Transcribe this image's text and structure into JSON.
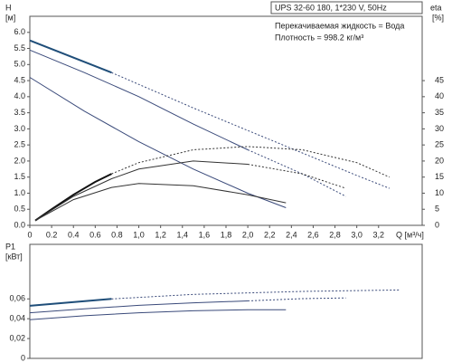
{
  "chart_data": [
    {
      "type": "line",
      "y_label": "H",
      "y_unit": "[м]",
      "y2_label": "eta",
      "y2_unit": "[%]",
      "x_label": "Q [м³/ч]",
      "info": [
        "UPS 32-60 180, 1*230 V, 50Hz",
        "Перекачиваемая жидкость = Вода",
        "Плотность = 998.2 кг/м³"
      ],
      "xlim": [
        0,
        3.6
      ],
      "xticks": [
        0,
        0.2,
        0.4,
        0.6,
        0.8,
        {
          "value": 1,
          "label": "1,0"
        },
        {
          "value": 1.2,
          "label": "1,2"
        },
        {
          "value": 1.4,
          "label": "1,4"
        },
        {
          "value": 1.6,
          "label": "1,6"
        },
        {
          "value": 1.8,
          "label": "1,8"
        },
        {
          "value": 2,
          "label": "2,0"
        },
        {
          "value": 2.2,
          "label": "2,2"
        },
        {
          "value": 2.4,
          "label": "2,4"
        },
        {
          "value": 2.6,
          "label": "2,6"
        },
        {
          "value": 2.8,
          "label": "2,8"
        },
        {
          "value": 3,
          "label": "3,0"
        },
        {
          "value": 3.2,
          "label": "3,2"
        }
      ],
      "ylim": [
        0,
        6.5
      ],
      "yticks": [
        {
          "value": 0,
          "label": "0.0"
        },
        0.5,
        {
          "value": 1,
          "label": "1.0"
        },
        1.5,
        {
          "value": 2,
          "label": "2.0"
        },
        2.5,
        {
          "value": 3,
          "label": "3.0"
        },
        3.5,
        {
          "value": 4,
          "label": "4.0"
        },
        4.5,
        {
          "value": 5,
          "label": "5.0"
        },
        5.5,
        {
          "value": 6,
          "label": "6.0"
        }
      ],
      "y2lim": [
        0,
        65
      ],
      "y2ticks": [
        0,
        5,
        10,
        15,
        20,
        25,
        30,
        35,
        40,
        45
      ],
      "grid": false,
      "series": [
        {
          "color": "#1f4e79",
          "width": 2,
          "dashed": false,
          "x": [
            0,
            0.75
          ],
          "values": [
            5.75,
            4.75
          ]
        },
        {
          "color": "#3a4a7a",
          "width": 1,
          "dashed": true,
          "x": [
            0.75,
            1.5,
            2.0,
            2.5,
            3.0,
            3.3
          ],
          "values": [
            4.75,
            3.65,
            2.95,
            2.25,
            1.55,
            1.15
          ]
        },
        {
          "color": "#3a4a7a",
          "width": 1,
          "dashed": false,
          "x": [
            0,
            0.5,
            1.0,
            1.5,
            2.0
          ],
          "values": [
            5.45,
            4.75,
            4.0,
            3.15,
            2.35
          ]
        },
        {
          "color": "#3a4a7a",
          "width": 1,
          "dashed": true,
          "x": [
            2.0,
            2.5,
            2.9
          ],
          "values": [
            2.35,
            1.6,
            0.9
          ]
        },
        {
          "color": "#3a4a7a",
          "width": 1,
          "dashed": false,
          "x": [
            0,
            0.5,
            1.0,
            1.5,
            2.0,
            2.35
          ],
          "values": [
            4.6,
            3.55,
            2.6,
            1.75,
            1.0,
            0.55
          ]
        },
        {
          "color": "#111111",
          "width": 2,
          "dashed": false,
          "axis": "y2",
          "x": [
            0.05,
            0.2,
            0.4,
            0.6,
            0.75
          ],
          "values": [
            1.5,
            5,
            9.5,
            13.5,
            16
          ]
        },
        {
          "color": "#333333",
          "width": 1,
          "dashed": true,
          "axis": "y2",
          "x": [
            0.75,
            1.0,
            1.5,
            2.0,
            2.5,
            3.0,
            3.3
          ],
          "values": [
            16,
            19.5,
            23.5,
            24.5,
            23.5,
            19.5,
            15
          ]
        },
        {
          "color": "#333333",
          "width": 1,
          "dashed": false,
          "axis": "y2",
          "x": [
            0.05,
            0.4,
            0.75,
            1.0,
            1.5,
            2.0
          ],
          "values": [
            1.5,
            9,
            14.5,
            17.5,
            20,
            19
          ]
        },
        {
          "color": "#333333",
          "width": 1,
          "dashed": true,
          "axis": "y2",
          "x": [
            2.0,
            2.5,
            2.9
          ],
          "values": [
            19,
            16,
            11.5
          ]
        },
        {
          "color": "#333333",
          "width": 1,
          "dashed": false,
          "axis": "y2",
          "x": [
            0.05,
            0.4,
            0.75,
            1.0,
            1.5,
            2.0,
            2.35
          ],
          "values": [
            1.5,
            8,
            11.8,
            13,
            12.3,
            9.5,
            7
          ]
        }
      ]
    },
    {
      "type": "line",
      "y_label": "P1",
      "y_unit": "[кВт]",
      "xlim": [
        0,
        3.6
      ],
      "ylim": [
        0,
        0.115
      ],
      "yticks": [
        0,
        {
          "value": 0.02,
          "label": "0,02"
        },
        {
          "value": 0.04,
          "label": "0,04"
        },
        {
          "value": 0.06,
          "label": "0,06"
        }
      ],
      "grid": false,
      "series": [
        {
          "color": "#1f4e79",
          "width": 2,
          "dashed": false,
          "x": [
            0,
            0.75
          ],
          "values": [
            0.053,
            0.06
          ]
        },
        {
          "color": "#3a4a7a",
          "width": 1,
          "dashed": true,
          "x": [
            0.75,
            1.5,
            2.5,
            3.4
          ],
          "values": [
            0.06,
            0.0645,
            0.0675,
            0.069
          ]
        },
        {
          "color": "#3a4a7a",
          "width": 1,
          "dashed": false,
          "x": [
            0,
            0.5,
            1.0,
            1.5,
            2.0
          ],
          "values": [
            0.046,
            0.05,
            0.0535,
            0.056,
            0.058
          ]
        },
        {
          "color": "#3a4a7a",
          "width": 1,
          "dashed": true,
          "x": [
            2.0,
            2.5,
            2.9
          ],
          "values": [
            0.058,
            0.0602,
            0.061
          ]
        },
        {
          "color": "#3a4a7a",
          "width": 1,
          "dashed": false,
          "x": [
            0,
            0.5,
            1.0,
            1.5,
            2.0,
            2.35
          ],
          "values": [
            0.039,
            0.043,
            0.046,
            0.048,
            0.049,
            0.049
          ]
        }
      ]
    }
  ]
}
